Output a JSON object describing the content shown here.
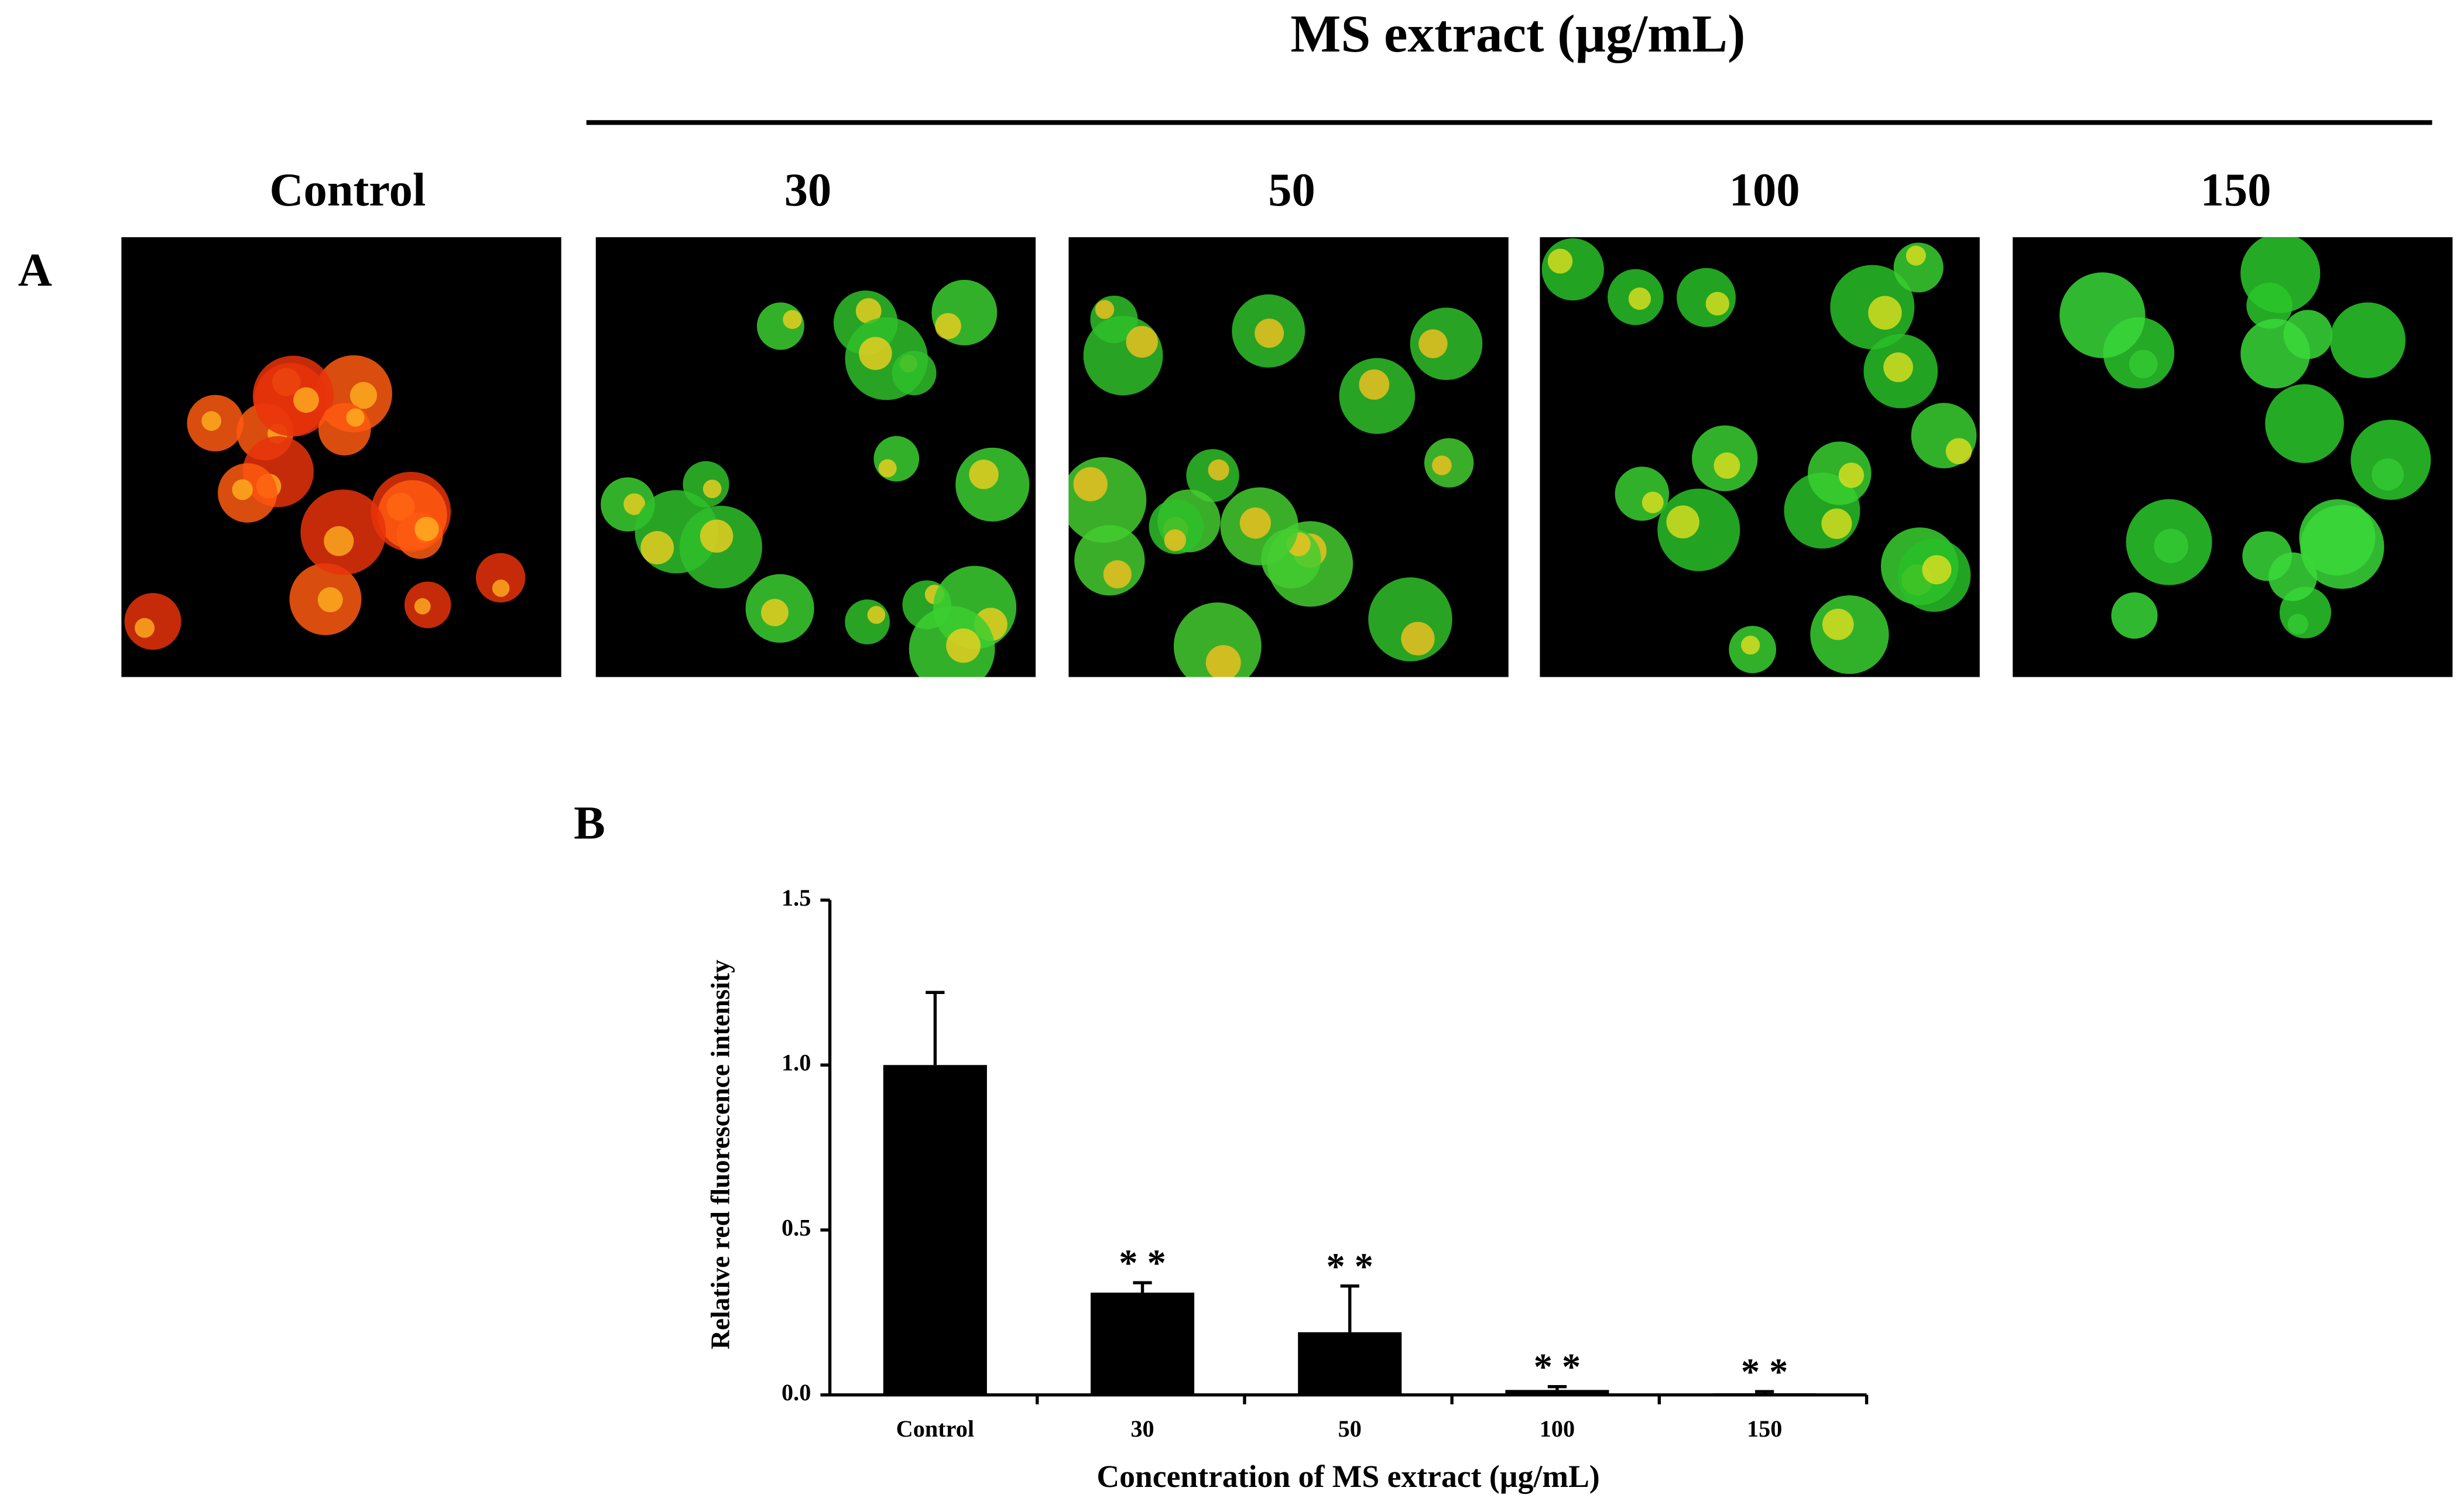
{
  "figure": {
    "panel_a_label": "A",
    "panel_b_label": "B",
    "group_title": "MS extract (µg/mL)",
    "panels": [
      "Control",
      "30",
      "50",
      "100",
      "150"
    ]
  },
  "chart_data": {
    "type": "bar",
    "y_label": "Relative red  fluorescence intensity",
    "x_label": "Concentration of MS extract  (µg/mL)",
    "categories": [
      "Control",
      "30",
      "50",
      "100",
      "150"
    ],
    "values": [
      1.0,
      0.31,
      0.19,
      0.015,
      0.005
    ],
    "errors": [
      0.22,
      0.03,
      0.14,
      0.01,
      0.005
    ],
    "significance": [
      null,
      "* *",
      "* *",
      "* *",
      "* *"
    ],
    "color": "#000000",
    "ylim": [
      0,
      1.5
    ],
    "yticks": [
      {
        "value": 0,
        "label": "0.0"
      },
      0.5,
      {
        "value": 1,
        "label": "1.0"
      },
      1.5
    ]
  }
}
